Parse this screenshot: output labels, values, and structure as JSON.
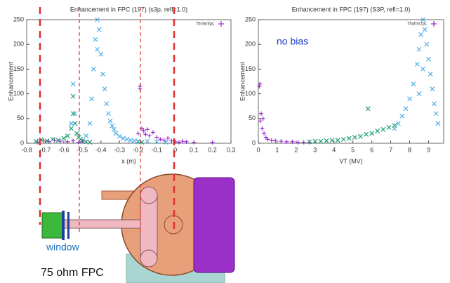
{
  "chart_data": [
    {
      "type": "scatter",
      "title": "Enhancement in FPC (197) (s3p, refl=1.0)",
      "x_label": "x (m)",
      "y_label": "Enhancement",
      "xlim": [
        -0.8,
        0.3
      ],
      "xticks": [
        -0.8,
        -0.7,
        -0.6,
        -0.5,
        -0.4,
        -0.3,
        -0.2,
        -0.1,
        0,
        0.1,
        0.2,
        0.3
      ],
      "ylim": [
        0,
        250
      ],
      "yticks": [
        0,
        50,
        100,
        150,
        200,
        250
      ],
      "legend": "upper right",
      "series": [
        {
          "name": "75ohmfpc",
          "color": "#9b30d0",
          "marker": "+",
          "x": [
            -0.74,
            -0.71,
            -0.68,
            -0.65,
            -0.62,
            -0.58,
            -0.55,
            -0.52,
            -0.5,
            -0.2,
            -0.19,
            -0.19,
            -0.18,
            -0.17,
            -0.16,
            -0.15,
            -0.14,
            -0.12,
            -0.1,
            -0.08,
            -0.06,
            -0.04,
            -0.02,
            0,
            0.02,
            0.04,
            0.06,
            0.1,
            0.2
          ],
          "values": [
            2,
            5,
            3,
            6,
            4,
            3,
            5,
            2,
            4,
            20,
            115,
            110,
            30,
            25,
            18,
            28,
            15,
            22,
            12,
            8,
            6,
            10,
            5,
            3,
            2,
            4,
            3,
            2,
            2
          ]
        },
        {
          "color": "#1a9e6e",
          "marker": "x",
          "x": [
            -0.75,
            -0.72,
            -0.69,
            -0.66,
            -0.63,
            -0.6,
            -0.58,
            -0.56,
            -0.55,
            -0.55,
            -0.54,
            -0.53,
            -0.52,
            -0.51,
            -0.5,
            -0.48,
            -0.46,
            -0.2,
            -0.18
          ],
          "values": [
            4,
            7,
            5,
            8,
            6,
            10,
            15,
            30,
            60,
            95,
            40,
            20,
            12,
            8,
            5,
            3,
            2,
            3,
            2
          ]
        },
        {
          "color": "#4fb0e6",
          "marker": "x",
          "x": [
            -0.56,
            -0.55,
            -0.54,
            -0.48,
            -0.46,
            -0.45,
            -0.44,
            -0.43,
            -0.42,
            -0.42,
            -0.41,
            -0.4,
            -0.39,
            -0.38,
            -0.37,
            -0.36,
            -0.35,
            -0.34,
            -0.33,
            -0.32,
            -0.3,
            -0.28,
            -0.26,
            -0.24,
            -0.22,
            -0.2,
            -0.15,
            -0.1,
            -0.05
          ],
          "values": [
            40,
            120,
            60,
            15,
            40,
            90,
            150,
            210,
            250,
            190,
            230,
            180,
            140,
            110,
            80,
            60,
            45,
            35,
            28,
            20,
            14,
            10,
            8,
            6,
            5,
            4,
            4,
            3,
            2
          ]
        }
      ]
    },
    {
      "type": "scatter",
      "title": "Enhancement in FPC (197) (S3P, refl=1.0)",
      "x_label": "VT (MV)",
      "y_label": "Enhancement",
      "annotation": "no bias",
      "xlim": [
        0,
        9.8
      ],
      "xticks": [
        0,
        1,
        2,
        3,
        4,
        5,
        6,
        7,
        8,
        9
      ],
      "ylim": [
        0,
        250
      ],
      "yticks": [
        0,
        50,
        100,
        150,
        200,
        250
      ],
      "legend": "upper right",
      "series": [
        {
          "name": "75ohm.fpc",
          "color": "#9b30d0",
          "marker": "+",
          "x": [
            0.05,
            0.08,
            0.1,
            0.15,
            0.2,
            0.25,
            0.3,
            0.4,
            0.5,
            0.7,
            0.9,
            1.2,
            1.5,
            1.8,
            2.1,
            2.4,
            2.7
          ],
          "values": [
            115,
            120,
            45,
            60,
            30,
            50,
            20,
            12,
            8,
            6,
            5,
            4,
            3,
            3,
            2,
            2,
            2
          ]
        },
        {
          "color": "#1a9e6e",
          "marker": "x",
          "x": [
            2.7,
            3,
            3.3,
            3.6,
            3.9,
            4.2,
            4.5,
            4.8,
            5.1,
            5.4,
            5.7,
            5.8,
            6,
            6.3,
            6.6,
            6.9,
            7.2
          ],
          "values": [
            3,
            4,
            4,
            5,
            6,
            6,
            8,
            10,
            12,
            14,
            18,
            70,
            20,
            25,
            28,
            32,
            36
          ]
        },
        {
          "color": "#4fb0e6",
          "marker": "x",
          "x": [
            7.2,
            7.4,
            7.6,
            7.8,
            8,
            8.2,
            8.4,
            8.5,
            8.6,
            8.7,
            8.8,
            8.9,
            9,
            9.1,
            9.2,
            9.3,
            9.4,
            9.5,
            8.7,
            8.5
          ],
          "values": [
            30,
            40,
            55,
            70,
            90,
            120,
            160,
            190,
            220,
            250,
            230,
            200,
            170,
            140,
            110,
            80,
            60,
            40,
            150,
            100
          ]
        }
      ]
    }
  ],
  "diagram": {
    "labels": [
      "window",
      "75 ohm FPC"
    ]
  }
}
